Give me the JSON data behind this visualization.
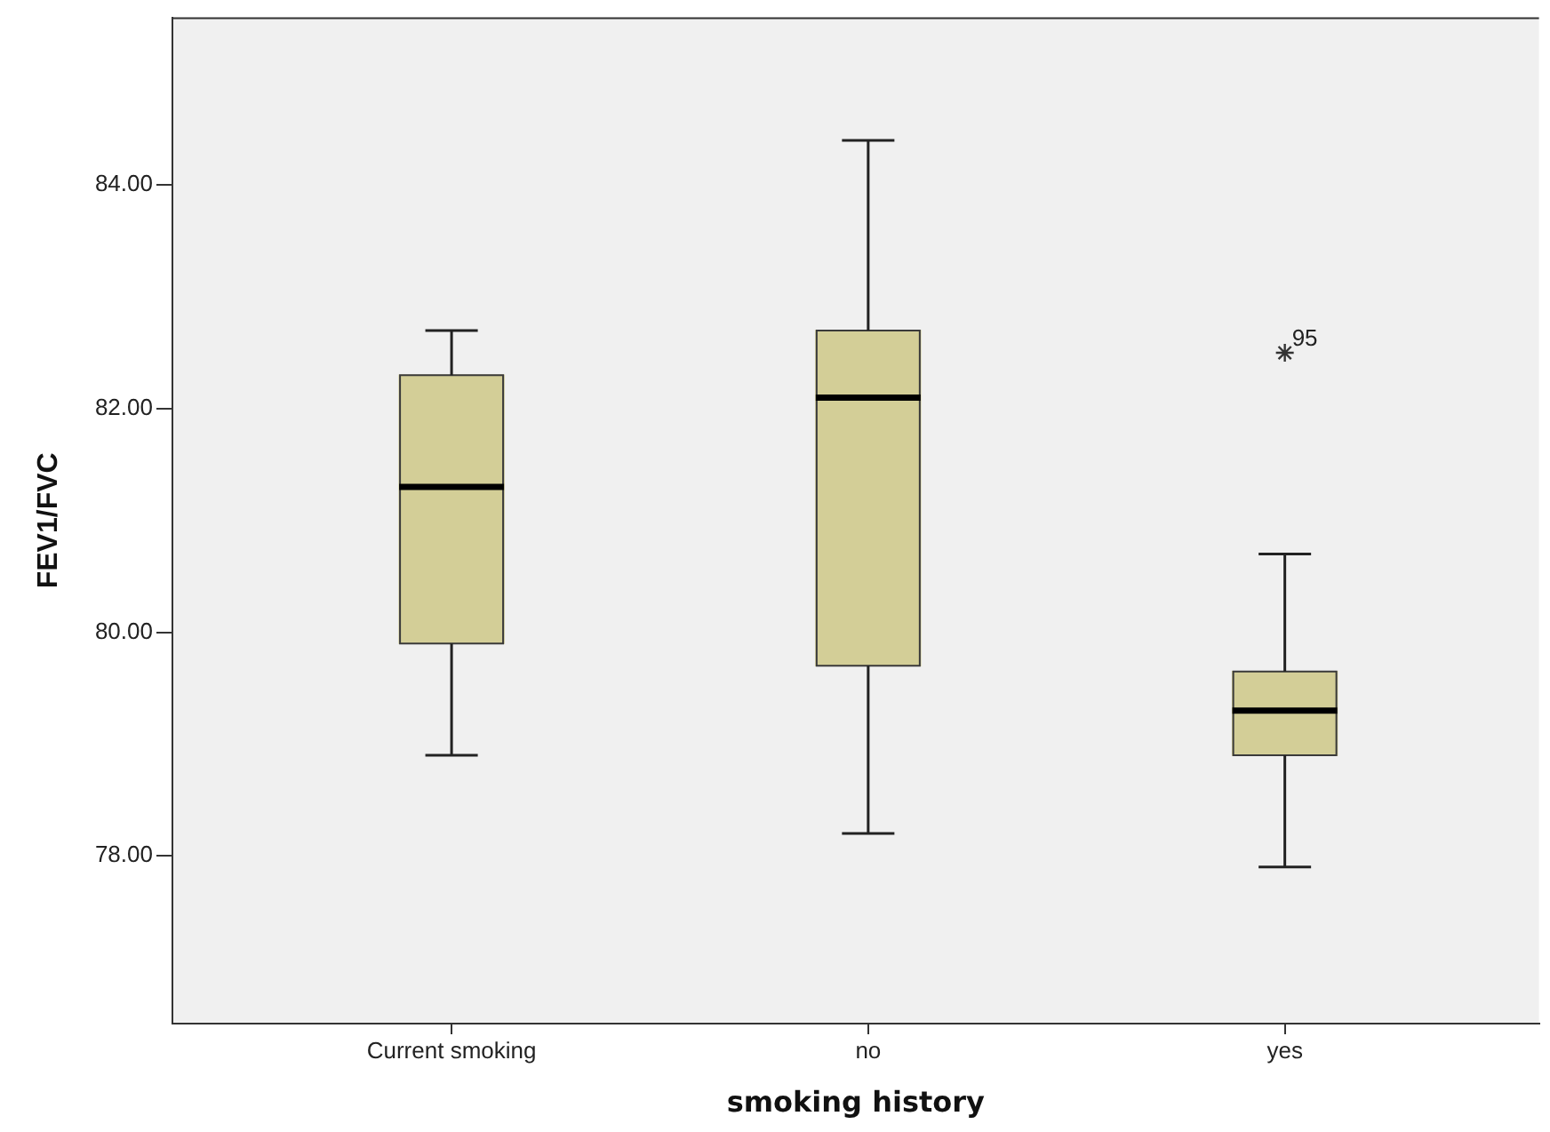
{
  "chart_data": {
    "type": "box",
    "xlabel": "smoking history",
    "ylabel": "FEV1/FVC",
    "categories": [
      "Current smoking",
      "no",
      "yes"
    ],
    "boxes": [
      {
        "low": 78.9,
        "q1": 79.9,
        "median": 81.3,
        "q3": 82.3,
        "high": 82.7
      },
      {
        "low": 78.2,
        "q1": 79.7,
        "median": 82.1,
        "q3": 82.7,
        "high": 84.4
      },
      {
        "low": 77.9,
        "q1": 78.9,
        "median": 79.3,
        "q3": 79.65,
        "high": 80.7,
        "outliers": [
          82.5
        ]
      }
    ],
    "color": "#d3ce97",
    "marker": "star",
    "ylim": [
      76.5,
      85.5
    ],
    "yticks": [
      {
        "value": 78,
        "label": "78.00"
      },
      {
        "value": 80,
        "label": "80.00"
      },
      {
        "value": 82,
        "label": "82.00"
      },
      {
        "value": 84,
        "label": "84.00"
      }
    ],
    "annotations": [
      "95"
    ]
  }
}
